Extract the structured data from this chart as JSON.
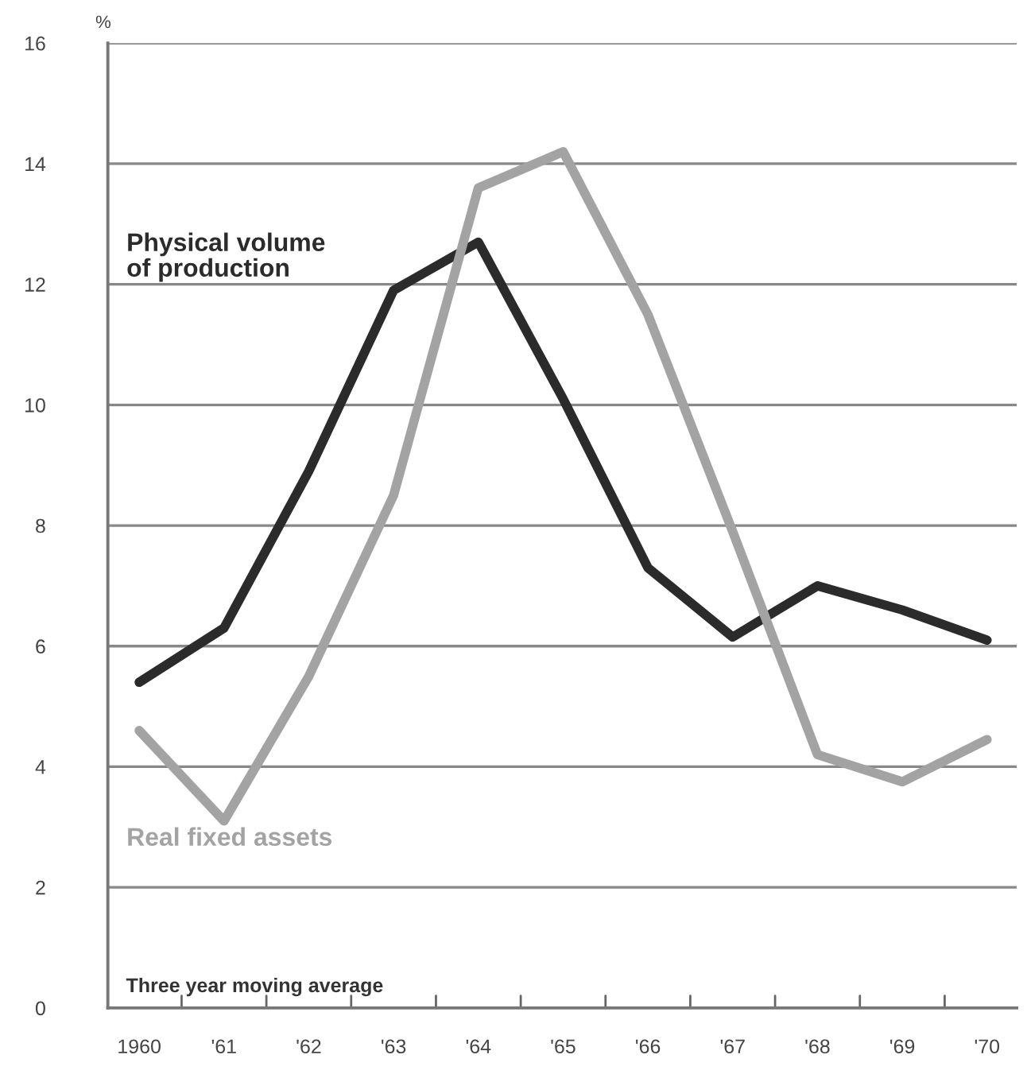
{
  "chart_data": {
    "type": "line",
    "ylabel": "%",
    "categories": [
      "1960",
      "'61",
      "'62",
      "'63",
      "'64",
      "'65",
      "'66",
      "'67",
      "'68",
      "'69",
      "'70"
    ],
    "series": [
      {
        "name": "Physical volume\nof production",
        "color": "#2b2b2b",
        "values": [
          5.4,
          6.3,
          8.9,
          11.9,
          12.7,
          10.1,
          7.3,
          6.15,
          7.0,
          6.6,
          6.1
        ]
      },
      {
        "name": "Real fixed assets",
        "color": "#a3a3a3",
        "values": [
          4.6,
          3.1,
          5.5,
          8.5,
          13.6,
          14.2,
          11.5,
          7.9,
          4.2,
          3.75,
          4.45
        ]
      }
    ],
    "ylim": [
      0,
      16
    ],
    "yticks": [
      0,
      2,
      4,
      6,
      8,
      10,
      12,
      14,
      16
    ],
    "grid": "y",
    "legend": false,
    "marker": "none",
    "line_style": "solid",
    "annotations": [
      "Three year moving average"
    ]
  }
}
